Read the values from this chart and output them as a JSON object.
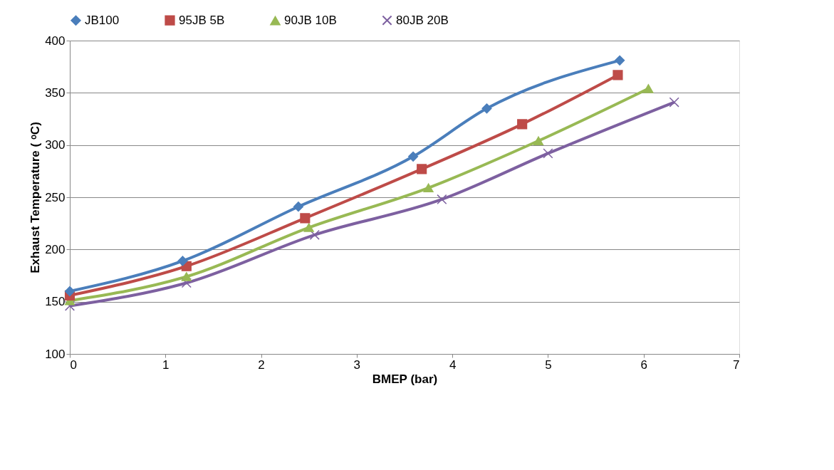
{
  "chart_data": {
    "type": "line",
    "xlabel": "BMEP (bar)",
    "ylabel": "Exhaust Temperature ( ᵒC)",
    "xlim": [
      0,
      7
    ],
    "xticks": [
      0,
      1,
      2,
      3,
      4,
      5,
      6,
      7
    ],
    "ylim": [
      100,
      400
    ],
    "yticks": [
      100,
      150,
      200,
      250,
      300,
      350,
      400
    ],
    "grid": "y",
    "legend": "top",
    "line_style": "solid",
    "series": [
      {
        "name": "JB100",
        "color": "#4a7ebb",
        "marker": "diamond",
        "x": [
          0,
          1.18,
          2.39,
          3.59,
          4.36,
          5.75
        ],
        "values": [
          160,
          189,
          241,
          289,
          335,
          381
        ]
      },
      {
        "name": "95JB 5B",
        "color": "#be4b48",
        "marker": "square",
        "x": [
          0,
          1.22,
          2.46,
          3.68,
          4.73,
          5.73
        ],
        "values": [
          156,
          184,
          230,
          277,
          320,
          367
        ]
      },
      {
        "name": "90JB 10B",
        "color": "#98b954",
        "marker": "triangle",
        "x": [
          0,
          1.22,
          2.5,
          3.75,
          4.9,
          6.05
        ],
        "values": [
          151,
          174,
          221,
          259,
          304,
          354
        ]
      },
      {
        "name": "80JB 20B",
        "color": "#7d60a0",
        "marker": "cross",
        "x": [
          0,
          1.22,
          2.56,
          3.89,
          5.0,
          6.32
        ],
        "values": [
          146,
          168,
          214,
          248,
          292,
          341
        ]
      }
    ]
  }
}
